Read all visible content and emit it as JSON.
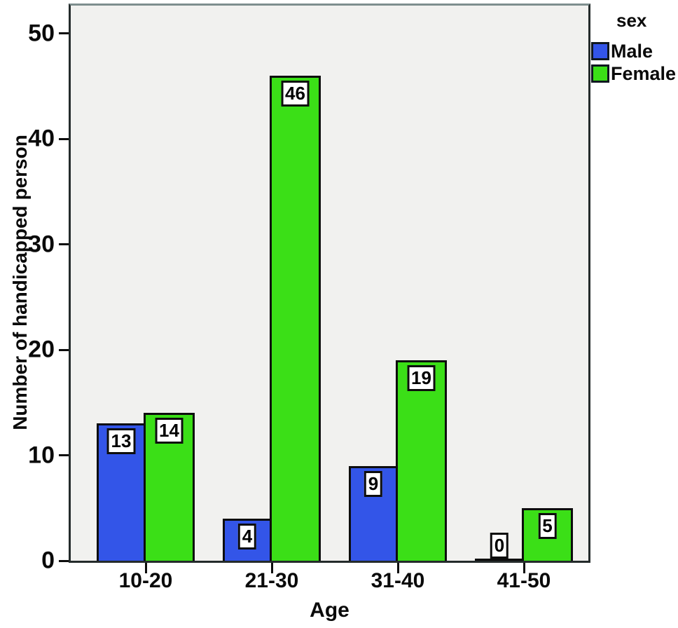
{
  "figure": {
    "background": "#ffffff",
    "plot_background": "#f1f1ef",
    "frame_color": "#242b2b",
    "frame_top_color": "#7e8e8e",
    "bar_border_color": "#0d0d0d"
  },
  "chart_data": {
    "type": "bar",
    "title": "",
    "xlabel": "Age",
    "ylabel": "Number of handicapped person",
    "categories": [
      "10-20",
      "21-30",
      "31-40",
      "41-50"
    ],
    "series": [
      {
        "name": "Male",
        "color": "#3355e8",
        "values": [
          13,
          4,
          9,
          0
        ]
      },
      {
        "name": "Female",
        "color": "#3bdf17",
        "values": [
          14,
          46,
          19,
          5
        ]
      }
    ],
    "ylim": [
      0,
      50
    ],
    "yticks": [
      0,
      10,
      20,
      30,
      40,
      50
    ],
    "grid": false,
    "bar_value_labels": true,
    "legend": {
      "title": "sex",
      "position": "top-right-outside"
    }
  }
}
